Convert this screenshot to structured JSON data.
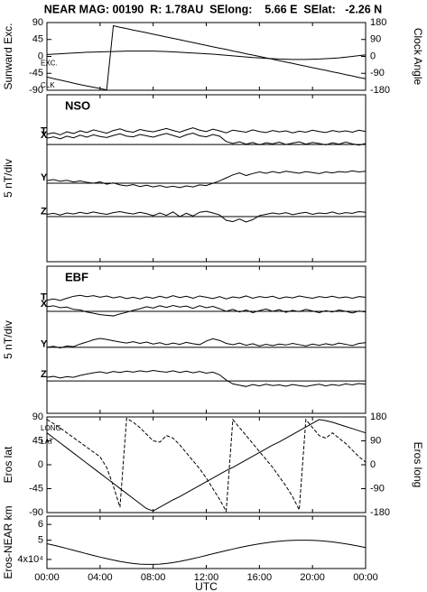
{
  "title": "NEAR MAG: 00190  R: 1.78AU  SElong:    5.66 E  SElat:   -2.26 N",
  "chart_data": [
    {
      "type": "line",
      "ylabel": "Sunward Exc.",
      "y2label": "Clock Angle",
      "x": [
        0,
        0.5,
        1,
        1.5,
        2,
        2.5,
        3,
        3.5,
        4,
        4.5,
        5,
        5.5,
        6,
        6.5,
        7,
        7.5,
        8,
        8.5,
        9,
        9.5,
        10,
        10.5,
        11,
        11.5,
        12,
        12.5,
        13,
        13.5,
        14,
        14.5,
        15,
        15.5,
        16,
        16.5,
        17,
        17.5,
        18,
        18.5,
        19,
        19.5,
        20,
        20.5,
        21,
        21.5,
        22,
        22.5,
        23,
        23.5,
        24
      ],
      "xlim": [
        0,
        24
      ],
      "ylim": [
        -90,
        90
      ],
      "yticks": [
        90,
        45,
        0,
        -45,
        -90
      ],
      "y2lim": [
        -180,
        180
      ],
      "y2ticks": [
        180,
        90,
        0,
        -90,
        -180
      ],
      "series": [
        {
          "name": "EXC.",
          "color": "#000000",
          "values": [
            5,
            6,
            7,
            8,
            9,
            10,
            11,
            11.5,
            12,
            12.5,
            13,
            13.5,
            14,
            14,
            14,
            14,
            14,
            13.5,
            13,
            12,
            11,
            10,
            9,
            8,
            7,
            6,
            4.5,
            3,
            1.5,
            0,
            -1.5,
            -3,
            -4,
            -5,
            -6,
            -7,
            -7.5,
            -8,
            -8,
            -8,
            -7.5,
            -7,
            -6,
            -5,
            -4,
            -2,
            0,
            2,
            4
          ]
        },
        {
          "name": "CLK",
          "color": "#000000",
          "axis": "y2",
          "values": [
            -110,
            -118,
            -126,
            -134,
            -142,
            -150,
            -157,
            -164,
            -171,
            -178,
            163,
            155,
            148,
            140,
            133,
            126,
            118,
            111,
            103,
            96,
            89,
            81,
            74,
            66,
            59,
            51,
            44,
            37,
            29,
            22,
            14,
            7,
            0,
            -8,
            -15,
            -23,
            -30,
            -37,
            -45,
            -52,
            -60,
            -67,
            -74,
            -82,
            -89,
            -97,
            -104,
            -112,
            -119
          ]
        }
      ]
    },
    {
      "type": "line",
      "label": "NSO",
      "ylabel": "5 nT/div",
      "x": [
        0,
        0.5,
        1,
        1.5,
        2,
        2.5,
        3,
        3.5,
        4,
        4.5,
        5,
        5.5,
        6,
        6.5,
        7,
        7.5,
        8,
        8.5,
        9,
        9.5,
        10,
        10.5,
        11,
        11.5,
        12,
        12.5,
        13,
        13.5,
        14,
        14.5,
        15,
        15.5,
        16,
        16.5,
        17,
        17.5,
        18,
        18.5,
        19,
        19.5,
        20,
        20.5,
        21,
        21.5,
        22,
        22.5,
        23,
        23.5,
        24
      ],
      "xlim": [
        0,
        24
      ],
      "ylim": [
        0,
        50
      ],
      "hlines": [
        35.1,
        23.5,
        13.5
      ],
      "series": [
        {
          "name": "T",
          "color": "#000000",
          "values": [
            38.2,
            38.6,
            38.0,
            38.9,
            38.4,
            39.2,
            38.7,
            39.5,
            39.0,
            38.5,
            39.3,
            39.8,
            39.1,
            38.8,
            39.6,
            39.2,
            38.9,
            39.4,
            39.9,
            39.3,
            38.8,
            39.5,
            40.1,
            39.4,
            39.0,
            39.7,
            39.2,
            38.6,
            39.4,
            39.1,
            38.8,
            39.5,
            39.0,
            38.7,
            39.3,
            38.9,
            39.2,
            38.6,
            39.1,
            38.8,
            39.4,
            39.0,
            38.7,
            39.3,
            38.9,
            39.2,
            38.8,
            39.4,
            39.0
          ]
        },
        {
          "name": "X",
          "color": "#000000",
          "values": [
            37.0,
            37.4,
            36.8,
            37.6,
            37.1,
            37.9,
            37.3,
            38.0,
            37.5,
            37.2,
            37.8,
            38.3,
            37.6,
            37.4,
            38.1,
            37.7,
            37.3,
            37.9,
            38.4,
            37.8,
            37.2,
            38.0,
            38.5,
            37.7,
            37.4,
            38.1,
            37.6,
            36.0,
            35.4,
            35.9,
            35.2,
            35.7,
            35.0,
            35.6,
            35.3,
            35.8,
            35.1,
            35.5,
            35.9,
            35.2,
            35.7,
            35.4,
            35.0,
            35.6,
            35.2,
            35.8,
            35.3,
            34.9,
            35.4
          ]
        },
        {
          "name": "Y",
          "color": "#000000",
          "values": [
            24.3,
            24.6,
            24.1,
            24.4,
            23.9,
            24.2,
            23.8,
            23.5,
            23.9,
            23.2,
            23.6,
            23.0,
            22.7,
            23.1,
            22.5,
            22.9,
            22.4,
            22.8,
            22.3,
            22.6,
            22.2,
            22.7,
            22.4,
            23.0,
            22.8,
            23.5,
            24.2,
            25.1,
            26.0,
            26.6,
            25.8,
            26.4,
            26.9,
            26.5,
            27.0,
            26.6,
            27.1,
            26.8,
            26.5,
            27.0,
            26.7,
            26.4,
            26.9,
            26.6,
            27.0,
            26.8,
            27.2,
            26.9,
            27.1
          ]
        },
        {
          "name": "Z",
          "color": "#000000",
          "values": [
            14.2,
            14.5,
            14.0,
            14.6,
            14.3,
            14.8,
            14.4,
            14.9,
            14.5,
            14.2,
            14.7,
            15.0,
            14.6,
            14.3,
            14.8,
            14.4,
            13.8,
            14.6,
            13.9,
            14.9,
            13.5,
            14.5,
            13.7,
            14.8,
            15.1,
            14.6,
            14.0,
            12.4,
            12.0,
            12.8,
            11.9,
            12.6,
            13.8,
            14.2,
            14.6,
            14.3,
            14.7,
            14.1,
            14.5,
            14.8,
            14.2,
            14.6,
            14.4,
            14.9,
            14.3,
            14.7,
            14.5,
            15.0,
            14.8
          ]
        }
      ]
    },
    {
      "type": "line",
      "label": "EBF",
      "ylabel": "5 nT/div",
      "x": [
        0,
        0.5,
        1,
        1.5,
        2,
        2.5,
        3,
        3.5,
        4,
        4.5,
        5,
        5.5,
        6,
        6.5,
        7,
        7.5,
        8,
        8.5,
        9,
        9.5,
        10,
        10.5,
        11,
        11.5,
        12,
        12.5,
        13,
        13.5,
        14,
        14.5,
        15,
        15.5,
        16,
        16.5,
        17,
        17.5,
        18,
        18.5,
        19,
        19.5,
        20,
        20.5,
        21,
        21.5,
        22,
        22.5,
        23,
        23.5,
        24
      ],
      "xlim": [
        0,
        24
      ],
      "ylim": [
        0,
        45
      ],
      "hlines": [
        31.2,
        20.2,
        9.9
      ],
      "series": [
        {
          "name": "T",
          "color": "#000000",
          "values": [
            34.6,
            35.0,
            34.5,
            35.2,
            35.8,
            36.1,
            35.7,
            36.0,
            35.5,
            35.9,
            35.3,
            35.7,
            35.1,
            35.5,
            35.0,
            35.6,
            35.2,
            35.8,
            35.3,
            36.0,
            35.4,
            35.8,
            35.2,
            35.9,
            35.5,
            35.1,
            35.7,
            35.0,
            35.6,
            35.3,
            35.9,
            35.2,
            35.7,
            35.4,
            35.8,
            35.1,
            35.6,
            35.3,
            35.9,
            35.5,
            35.2,
            35.7,
            35.4,
            35.8,
            35.3,
            35.6,
            35.2,
            35.7,
            35.5
          ]
        },
        {
          "name": "X",
          "color": "#000000",
          "values": [
            32.6,
            32.9,
            32.3,
            32.5,
            31.8,
            31.6,
            31.0,
            30.6,
            30.2,
            30.0,
            29.8,
            30.4,
            30.9,
            31.5,
            32.0,
            32.6,
            32.2,
            32.9,
            32.4,
            33.0,
            32.5,
            32.8,
            32.1,
            32.9,
            32.3,
            32.7,
            32.0,
            31.2,
            31.8,
            31.0,
            31.6,
            30.8,
            31.4,
            31.9,
            31.2,
            31.7,
            30.9,
            31.5,
            31.1,
            31.8,
            31.3,
            30.8,
            31.4,
            31.0,
            31.6,
            31.2,
            30.7,
            31.3,
            31.0
          ]
        },
        {
          "name": "Y",
          "color": "#000000",
          "values": [
            20.2,
            20.5,
            20.0,
            20.6,
            20.4,
            21.2,
            21.8,
            22.5,
            22.9,
            22.6,
            22.2,
            21.8,
            21.5,
            21.9,
            21.4,
            21.8,
            21.2,
            21.6,
            21.0,
            21.5,
            21.1,
            21.7,
            21.3,
            21.0,
            22.1,
            22.8,
            22.3,
            21.4,
            21.0,
            21.5,
            20.8,
            21.3,
            20.6,
            21.1,
            20.7,
            21.2,
            20.9,
            21.4,
            21.0,
            20.6,
            21.2,
            20.8,
            21.3,
            20.9,
            21.5,
            21.1,
            20.7,
            21.4,
            21.6
          ]
        },
        {
          "name": "Z",
          "color": "#000000",
          "values": [
            11.0,
            11.3,
            10.8,
            11.2,
            11.0,
            11.6,
            12.0,
            12.4,
            12.7,
            12.3,
            12.8,
            12.5,
            12.9,
            12.6,
            13.0,
            12.7,
            13.1,
            12.8,
            12.6,
            13.0,
            12.5,
            12.9,
            12.4,
            12.8,
            12.3,
            12.6,
            11.8,
            10.2,
            9.0,
            8.6,
            8.2,
            8.8,
            8.4,
            8.9,
            8.5,
            8.7,
            8.3,
            8.8,
            8.5,
            8.2,
            8.6,
            8.9,
            8.4,
            8.8,
            8.5,
            9.0,
            8.7,
            9.1,
            8.9
          ]
        }
      ]
    },
    {
      "type": "line",
      "ylabel": "Eros lat",
      "y2label": "Eros long",
      "x": [
        0,
        0.5,
        1,
        1.5,
        2,
        2.5,
        3,
        3.5,
        4,
        4.5,
        5,
        5.5,
        6,
        6.5,
        7,
        7.5,
        8,
        8.5,
        9,
        9.5,
        10,
        10.5,
        11,
        11.5,
        12,
        12.5,
        13,
        13.5,
        14,
        14.5,
        15,
        15.5,
        16,
        16.5,
        17,
        17.5,
        18,
        18.5,
        19,
        19.5,
        20,
        20.5,
        21,
        21.5,
        22,
        22.5,
        23,
        23.5,
        24
      ],
      "xlim": [
        0,
        24
      ],
      "ylim": [
        -90,
        90
      ],
      "yticks": [
        90,
        45,
        0,
        -45,
        -90
      ],
      "y2lim": [
        -180,
        180
      ],
      "y2ticks": [
        180,
        90,
        0,
        -90,
        -180
      ],
      "series": [
        {
          "name": "LAT",
          "color": "#000000",
          "values": [
            60,
            50.5,
            41,
            31.5,
            22,
            12.5,
            3,
            -6.5,
            -16,
            -25.5,
            -35,
            -44.5,
            -54,
            -63.5,
            -73,
            -82.5,
            -87,
            -80,
            -73,
            -66,
            -60,
            -53,
            -46,
            -39,
            -32,
            -25,
            -18,
            -11,
            -5,
            2,
            9,
            16,
            23,
            30,
            37,
            43,
            50,
            57,
            64,
            71,
            78,
            85,
            83,
            80,
            76,
            72,
            68,
            64,
            60
          ]
        },
        {
          "name": "LONG",
          "color": "#000000",
          "axis": "y2",
          "dashed": true,
          "values": [
            170,
            155,
            138,
            120,
            102,
            84,
            66,
            48,
            30,
            -10,
            -80,
            -160,
            175,
            160,
            140,
            115,
            90,
            85,
            110,
            100,
            75,
            45,
            15,
            -15,
            -50,
            -90,
            -130,
            -175,
            170,
            140,
            110,
            80,
            50,
            20,
            -10,
            -45,
            -80,
            -120,
            -170,
            170,
            140,
            110,
            100,
            120,
            100,
            80,
            55,
            30,
            10
          ]
        }
      ]
    },
    {
      "type": "line",
      "ylabel": "Eros-NEAR km",
      "xlabel": "UTC",
      "log": true,
      "x": [
        0,
        0.5,
        1,
        1.5,
        2,
        2.5,
        3,
        3.5,
        4,
        4.5,
        5,
        5.5,
        6,
        6.5,
        7,
        7.5,
        8,
        8.5,
        9,
        9.5,
        10,
        10.5,
        11,
        11.5,
        12,
        12.5,
        13,
        13.5,
        14,
        14.5,
        15,
        15.5,
        16,
        16.5,
        17,
        17.5,
        18,
        18.5,
        19,
        19.5,
        20,
        20.5,
        21,
        21.5,
        22,
        22.5,
        23,
        23.5,
        24
      ],
      "xlim": [
        0,
        24
      ],
      "xticks": [
        {
          "value": 0,
          "label": "00:00"
        },
        {
          "value": 4,
          "label": "04:00"
        },
        {
          "value": 8,
          "label": "08:00"
        },
        {
          "value": 12,
          "label": "12:00"
        },
        {
          "value": 16,
          "label": "16:00"
        },
        {
          "value": 20,
          "label": "20:00"
        },
        {
          "value": 24,
          "label": "00:00"
        }
      ],
      "ylim": [
        36000,
        66000
      ],
      "yticks": [
        {
          "value": 60000,
          "label": "6"
        },
        {
          "value": 50000,
          "label": "5"
        },
        {
          "value": 40000,
          "label": "4x10⁴"
        }
      ],
      "series": [
        {
          "name": "Eros-NEAR",
          "color": "#000000",
          "values": [
            48000,
            47200,
            46300,
            45400,
            44500,
            43600,
            42700,
            41900,
            41100,
            40400,
            39700,
            39100,
            38600,
            38200,
            37900,
            37800,
            37800,
            37900,
            38200,
            38600,
            39100,
            39700,
            40400,
            41100,
            41900,
            42700,
            43500,
            44300,
            45100,
            45900,
            46600,
            47300,
            47900,
            48500,
            49000,
            49400,
            49700,
            49900,
            50000,
            50000,
            49900,
            49700,
            49400,
            49000,
            48500,
            47900,
            47300,
            46600,
            45900
          ]
        }
      ]
    }
  ]
}
